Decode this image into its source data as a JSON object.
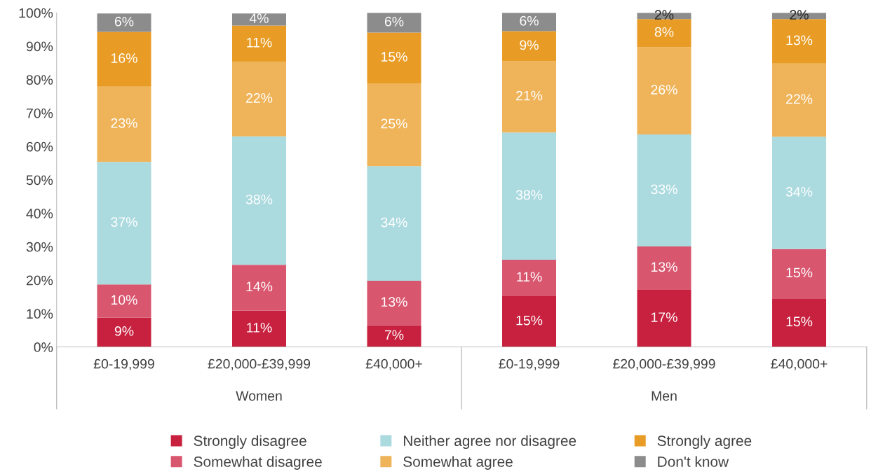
{
  "chart_data": {
    "type": "bar",
    "stacked": true,
    "categories": [
      "£0-19,999",
      "£20,000-£39,999",
      "£40,000+",
      "£0-19,999",
      "£20,000-£39,999",
      "£40,000+"
    ],
    "annotations": [
      "Women",
      "Men"
    ],
    "series": [
      {
        "name": "Strongly disagree",
        "color": "#c8213f",
        "values": [
          8.8,
          10.9,
          6.5,
          15.2,
          17.1,
          14.5
        ],
        "value_labels": [
          "9%",
          "11%",
          "7%",
          "15%",
          "17%",
          "15%"
        ]
      },
      {
        "name": "Somewhat disagree",
        "color": "#d9566f",
        "values": [
          9.9,
          13.7,
          13.3,
          10.9,
          13.0,
          14.8
        ],
        "value_labels": [
          "10%",
          "14%",
          "13%",
          "11%",
          "13%",
          "15%"
        ]
      },
      {
        "name": "Neither agree nor disagree",
        "color": "#abdadf",
        "values": [
          36.7,
          38.4,
          34.3,
          38.1,
          33.5,
          33.6
        ],
        "value_labels": [
          "37%",
          "38%",
          "34%",
          "38%",
          "33%",
          "34%"
        ]
      },
      {
        "name": "Somewhat agree",
        "color": "#efb45a",
        "values": [
          22.5,
          22.3,
          24.8,
          21.3,
          26.1,
          21.9
        ],
        "value_labels": [
          "23%",
          "22%",
          "25%",
          "21%",
          "26%",
          "22%"
        ]
      },
      {
        "name": "Strongly agree",
        "color": "#e99c25",
        "values": [
          16.4,
          10.9,
          15.2,
          9.0,
          8.4,
          13.3
        ],
        "value_labels": [
          "16%",
          "11%",
          "15%",
          "9%",
          "8%",
          "13%"
        ]
      },
      {
        "name": "Don't know",
        "color": "#8c8c8c",
        "values": [
          5.5,
          3.6,
          5.9,
          5.5,
          1.9,
          1.9
        ],
        "value_labels": [
          "6%",
          "4%",
          "6%",
          "6%",
          "2%",
          "2%"
        ]
      }
    ],
    "ylim": [
      0,
      100
    ],
    "yticks": [
      {
        "value": 0,
        "label": "0%"
      },
      {
        "value": 10,
        "label": "10%"
      },
      {
        "value": 20,
        "label": "20%"
      },
      {
        "value": 30,
        "label": "30%"
      },
      {
        "value": 40,
        "label": "40%"
      },
      {
        "value": 50,
        "label": "50%"
      },
      {
        "value": 60,
        "label": "60%"
      },
      {
        "value": 70,
        "label": "70%"
      },
      {
        "value": 80,
        "label": "80%"
      },
      {
        "value": 90,
        "label": "90%"
      },
      {
        "value": 100,
        "label": "100%"
      }
    ],
    "grid": false,
    "legend": "bottom"
  }
}
